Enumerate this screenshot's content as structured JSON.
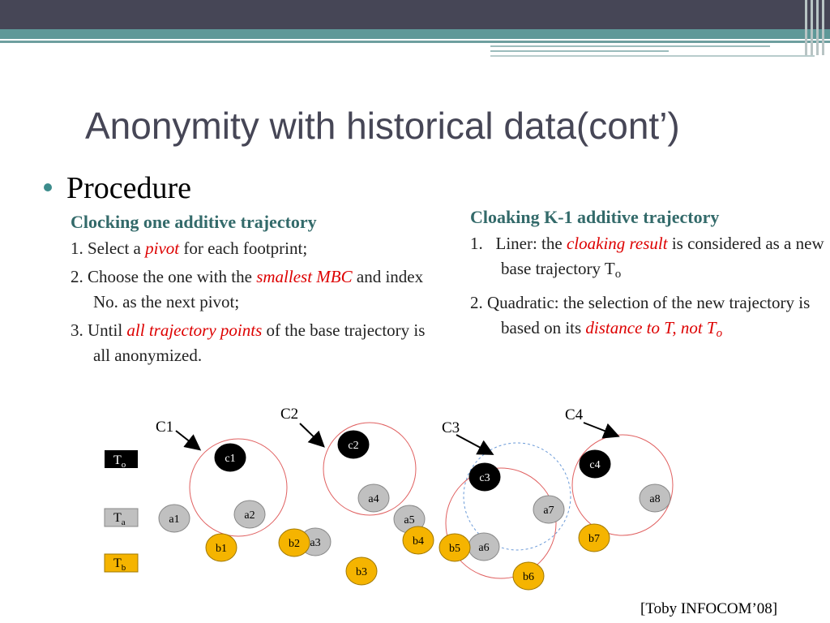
{
  "slide": {
    "title": "Anonymity with historical data(cont’)",
    "bullet": "Procedure",
    "citation": "[Toby INFOCOM’08]"
  },
  "left": {
    "heading": "Clocking one additive trajectory",
    "step1": {
      "pre": "1. Select a ",
      "em": "pivot",
      "post": " for each footprint;"
    },
    "step2": {
      "pre": "2. Choose the one with the ",
      "em": "smallest MBC",
      "post": " and index No. as the next pivot;"
    },
    "step3": {
      "pre": "3. Until ",
      "em": "all trajectory points",
      "post": " of the base trajectory is all anonymized."
    }
  },
  "right": {
    "heading": "Cloaking K-1 additive trajectory",
    "item1": {
      "num": "1.",
      "pre": "Liner:  the ",
      "em": "cloaking result",
      "post": " is considered as a new base trajectory T",
      "sub": "o"
    },
    "item2": {
      "pre": "2. Quadratic:  the selection of the new trajectory is based on its ",
      "em": "distance to T, not T",
      "sub": "o"
    }
  },
  "diagram": {
    "legend": [
      {
        "label": "T",
        "sub": "o",
        "color": "#000000",
        "text_color": "#ffffff"
      },
      {
        "label": "T",
        "sub": "a",
        "color": "#c0c0c0",
        "text_color": "#000000"
      },
      {
        "label": "T",
        "sub": "b",
        "color": "#f5b400",
        "text_color": "#000000"
      }
    ],
    "callouts": [
      "C1",
      "C2",
      "C3",
      "C4"
    ],
    "points": {
      "base": [
        "c1",
        "c2",
        "c3",
        "c4"
      ],
      "trajectory_a": [
        "a1",
        "a2",
        "a3",
        "a4",
        "a5",
        "a6",
        "a7",
        "a8"
      ],
      "trajectory_b": [
        "b1",
        "b2",
        "b3",
        "b4",
        "b5",
        "b6",
        "b7"
      ]
    },
    "colors": {
      "base": "#000000",
      "a": "#c0c0c0",
      "b": "#f5b400",
      "circle": "#e06060",
      "dashed": "#6a9ad8"
    }
  }
}
